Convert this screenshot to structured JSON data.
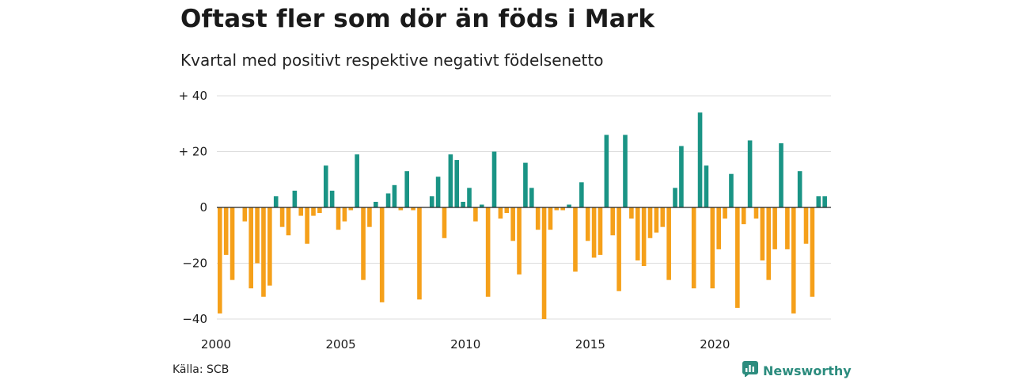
{
  "title": "Oftast fler som dör än föds i Mark",
  "subtitle": "Kvartal med positivt respektive negativt födelsenetto",
  "source": "Källa: SCB",
  "brand": "Newsworthy",
  "colors": {
    "positive": "#1a9485",
    "negative": "#f5a01a",
    "grid": "#dddddd",
    "brand": "#2c8c7e"
  },
  "icons": {
    "brand": "chart-logo-icon"
  },
  "chart_data": {
    "type": "bar",
    "title": "Oftast fler som dör än föds i Mark",
    "subtitle": "Kvartal med positivt respektive negativt födelsenetto",
    "xlabel": "",
    "ylabel": "",
    "ylim": [
      -40,
      40
    ],
    "yticks": [
      {
        "value": 40,
        "label": "+ 40"
      },
      {
        "value": 20,
        "label": "+ 20"
      },
      {
        "value": 0,
        "label": "0"
      },
      {
        "value": -20,
        "label": "−20"
      },
      {
        "value": -40,
        "label": "−40"
      }
    ],
    "xticks": [
      "2000",
      "2005",
      "2010",
      "2015",
      "2020"
    ],
    "start_year": 2000,
    "quarters_per_year": 4,
    "grid": true,
    "values": [
      -38,
      -17,
      -26,
      0,
      -5,
      -29,
      -20,
      -32,
      -28,
      4,
      -7,
      -10,
      6,
      -3,
      -13,
      -3,
      -2,
      15,
      6,
      -8,
      -5,
      -1,
      19,
      -26,
      -7,
      2,
      -34,
      5,
      8,
      -1,
      13,
      -1,
      -33,
      0,
      4,
      11,
      -11,
      19,
      17,
      2,
      7,
      -5,
      1,
      -32,
      20,
      -4,
      -2,
      -12,
      -24,
      16,
      7,
      -8,
      -40,
      -8,
      -1,
      -1,
      1,
      -23,
      9,
      -12,
      -18,
      -17,
      26,
      -10,
      -30,
      26,
      -4,
      -19,
      -21,
      -11,
      -9,
      -7,
      -26,
      7,
      22,
      0,
      -29,
      34,
      15,
      -29,
      -15,
      -4,
      12,
      -36,
      -6,
      24,
      -4,
      -19,
      -26,
      -15,
      23,
      -15,
      -38,
      13,
      -13,
      -32,
      4,
      4
    ]
  }
}
